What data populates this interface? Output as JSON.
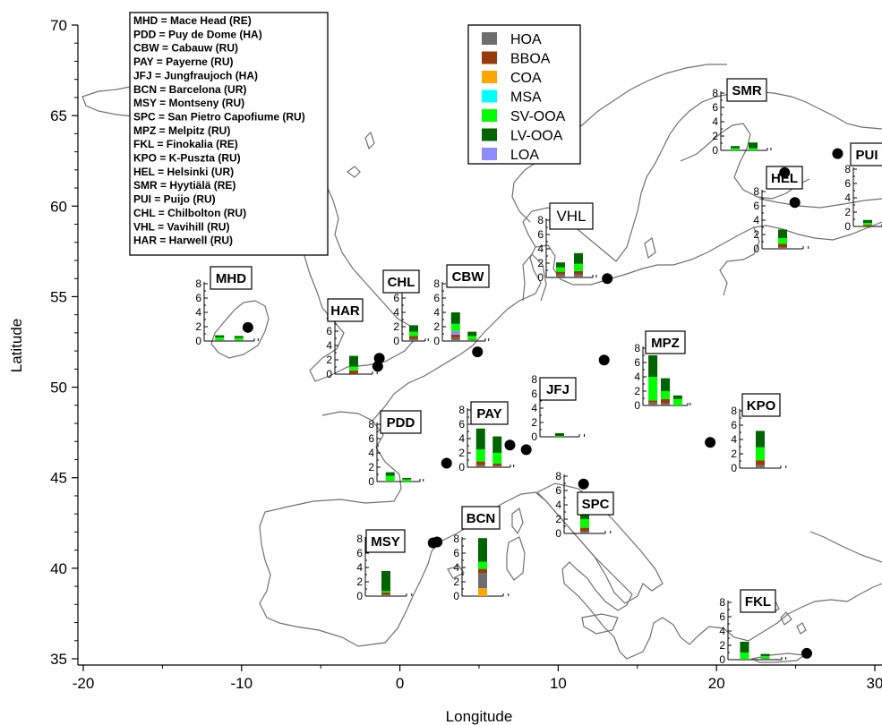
{
  "axes": {
    "xlabel": "Longitude",
    "ylabel": "Latitude",
    "xlim": [
      -20.5,
      31
    ],
    "ylim": [
      34.6,
      70
    ],
    "xticks": [
      "-20",
      "-10",
      "0",
      "10",
      "20",
      "30"
    ],
    "yticks": [
      "35",
      "40",
      "45",
      "50",
      "55",
      "60",
      "65",
      "70"
    ]
  },
  "site_key": [
    "MHD = Mace Head (RE)",
    "PDD = Puy de Dome (HA)",
    "CBW = Cabauw (RU)",
    "PAY = Payerne (RU)",
    "JFJ = Jungfraujoch (HA)",
    "BCN = Barcelona (UR)",
    "MSY = Montseny (RU)",
    "SPC = San Pietro Capofiume (RU)",
    "MPZ = Melpitz (RU)",
    "FKL = Finokalia (RE)",
    "KPO = K-Puszta (RU)",
    "HEL = Helsinki (UR)",
    "SMR = Hyytiälä (RE)",
    "PUI = Puijo (RU)",
    "CHL = Chilbolton (RU)",
    "VHL = Vavihill (RU)",
    "HAR = Harwell (RU)"
  ],
  "legend": [
    {
      "name": "HOA",
      "color": "#6e6e6e"
    },
    {
      "name": "BBOA",
      "color": "#9a3a0c"
    },
    {
      "name": "COA",
      "color": "#ffa500"
    },
    {
      "name": "MSA",
      "color": "#00ffff"
    },
    {
      "name": "SV-OOA",
      "color": "#00ff00"
    },
    {
      "name": "LV-OOA",
      "color": "#006400"
    },
    {
      "name": "LOA",
      "color": "#8c8cff"
    }
  ],
  "chart_data": {
    "type": "bar",
    "stack_order": [
      "COA",
      "HOA",
      "BBOA",
      "LOA",
      "MSA",
      "SV-OOA",
      "LV-OOA"
    ],
    "yticks": [
      "0",
      "2",
      "4",
      "6",
      "8"
    ],
    "ylim": [
      0,
      8
    ],
    "sites": [
      {
        "code": "MHD",
        "lon": -9.6,
        "lat": 53.3,
        "bars": [
          {
            "HOA": 0.05,
            "BBOA": 0.05,
            "SV-OOA": 0.4,
            "LV-OOA": 0.3
          },
          {
            "HOA": 0.05,
            "BBOA": 0.05,
            "SV-OOA": 0.35,
            "LV-OOA": 0.25
          }
        ]
      },
      {
        "code": "HAR",
        "lon": -1.3,
        "lat": 51.6,
        "bars": [
          {
            "BBOA": 0.5,
            "SV-OOA": 0.5,
            "LV-OOA": 1.5,
            "MSA": 0.05
          }
        ]
      },
      {
        "code": "CHL",
        "lon": -1.4,
        "lat": 51.15,
        "bars": [
          {
            "HOA": 0.3,
            "BBOA": 0.4,
            "SV-OOA": 0.6,
            "LV-OOA": 0.9
          }
        ]
      },
      {
        "code": "CBW",
        "lon": 4.9,
        "lat": 51.95,
        "bars": [
          {
            "HOA": 0.4,
            "BBOA": 0.5,
            "LOA": 0.5,
            "SV-OOA": 1.0,
            "LV-OOA": 1.6
          },
          {
            "HOA": 0.1,
            "BBOA": 0.1,
            "SV-OOA": 0.5,
            "LV-OOA": 0.6
          }
        ]
      },
      {
        "code": "VHL",
        "lon": 13.1,
        "lat": 56.0,
        "bars": [
          {
            "HOA": 0.4,
            "BBOA": 0.4,
            "SV-OOA": 0.6,
            "LV-OOA": 0.7
          },
          {
            "HOA": 0.4,
            "BBOA": 0.5,
            "SV-OOA": 1.0,
            "LV-OOA": 1.5
          }
        ]
      },
      {
        "code": "PDD",
        "lon": 2.95,
        "lat": 45.8,
        "bars": [
          {
            "HOA": 0.1,
            "SV-OOA": 0.7,
            "LV-OOA": 0.5
          },
          {
            "SV-OOA": 0.3,
            "LV-OOA": 0.2
          }
        ]
      },
      {
        "code": "PAY",
        "lon": 6.95,
        "lat": 46.8,
        "bars": [
          {
            "HOA": 0.3,
            "BBOA": 0.5,
            "SV-OOA": 1.7,
            "LV-OOA": 2.9
          },
          {
            "HOA": 0.2,
            "BBOA": 0.3,
            "SV-OOA": 1.5,
            "LV-OOA": 2.3
          }
        ]
      },
      {
        "code": "JFJ",
        "lon": 7.98,
        "lat": 46.55,
        "bars": [
          {
            "SV-OOA": 0.1,
            "LV-OOA": 0.4
          }
        ]
      },
      {
        "code": "MPZ",
        "lon": 12.9,
        "lat": 51.5,
        "bars": [
          {
            "HOA": 0.4,
            "BBOA": 0.3,
            "SV-OOA": 3.3,
            "LV-OOA": 3.0
          },
          {
            "HOA": 0.3,
            "BBOA": 0.6,
            "SV-OOA": 1.1,
            "LV-OOA": 1.8
          },
          {
            "SV-OOA": 0.9,
            "LV-OOA": 0.5
          }
        ]
      },
      {
        "code": "KPO",
        "lon": 19.6,
        "lat": 46.95,
        "bars": [
          {
            "HOA": 0.4,
            "BBOA": 0.7,
            "SV-OOA": 1.8,
            "LV-OOA": 2.3
          }
        ]
      },
      {
        "code": "SPC",
        "lon": 11.6,
        "lat": 44.65,
        "bars": [
          {
            "HOA": 0.3,
            "BBOA": 0.5,
            "SV-OOA": 1.2,
            "LV-OOA": 1.5
          }
        ]
      },
      {
        "code": "BCN",
        "lon": 2.1,
        "lat": 41.4,
        "bars": [
          {
            "COA": 1.1,
            "HOA": 2.1,
            "BBOA": 0.6,
            "SV-OOA": 1.0,
            "LV-OOA": 3.3
          }
        ]
      },
      {
        "code": "MSY",
        "lon": 2.35,
        "lat": 41.45,
        "bars": [
          {
            "HOA": 0.2,
            "BBOA": 0.3,
            "SV-OOA": 0.2,
            "LV-OOA": 2.8
          }
        ]
      },
      {
        "code": "FKL",
        "lon": 25.7,
        "lat": 35.3,
        "bars": [
          {
            "HOA": 0.1,
            "SV-OOA": 0.9,
            "LV-OOA": 1.5
          },
          {
            "HOA": 0.2,
            "SV-OOA": 0.3,
            "LV-OOA": 0.3
          }
        ]
      },
      {
        "code": "HEL",
        "lon": 24.95,
        "lat": 60.2,
        "bars": [
          {
            "HOA": 0.2,
            "BBOA": 0.5,
            "SV-OOA": 0.8,
            "LV-OOA": 1.2
          }
        ]
      },
      {
        "code": "SMR",
        "lon": 24.3,
        "lat": 61.85,
        "bars": [
          {
            "SV-OOA": 0.3,
            "LV-OOA": 0.3
          },
          {
            "SV-OOA": 0.3,
            "LV-OOA": 0.8
          }
        ]
      },
      {
        "code": "PUI",
        "lon": 27.65,
        "lat": 62.9,
        "bars": [
          {
            "BBOA": 0.2,
            "SV-OOA": 0.3,
            "LV-OOA": 0.4
          }
        ]
      }
    ]
  }
}
